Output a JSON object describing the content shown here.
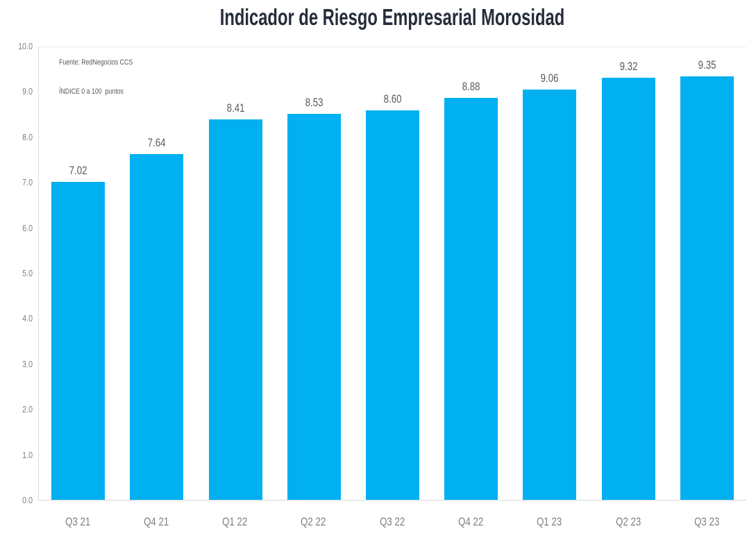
{
  "chart_data": {
    "type": "bar",
    "title": "Indicador de Riesgo Empresarial Morosidad",
    "categories": [
      "Q3 21",
      "Q4 21",
      "Q1 22",
      "Q2 22",
      "Q3 22",
      "Q4 22",
      "Q1 23",
      "Q2 23",
      "Q3 23"
    ],
    "values": [
      7.02,
      7.64,
      8.41,
      8.53,
      8.6,
      8.88,
      9.06,
      9.32,
      9.35
    ],
    "value_labels": [
      "7.02",
      "7.64",
      "8.41",
      "8.53",
      "8.60",
      "8.88",
      "9.06",
      "9.32",
      "9.35"
    ],
    "xlabel": "",
    "ylabel": "",
    "ylim": [
      0,
      10
    ],
    "ytick_step": 1.0,
    "ytick_labels": [
      "0.0",
      "1.0",
      "2.0",
      "3.0",
      "4.0",
      "5.0",
      "6.0",
      "7.0",
      "8.0",
      "9.0",
      "10.0"
    ],
    "grid": "top-boundary-line-only",
    "legend": null,
    "annotations": {
      "source": "Fuente: RedNegocios CCS",
      "index_note": "ÍNDICE 0 a 100  puntos"
    },
    "colors": {
      "bar": "#00b0f0",
      "title": "#262d3a",
      "data_label": "#595959",
      "axis_label": "#7f7f7f",
      "source_text": "#595959",
      "axis_line": "#d9d9d9",
      "top_gridline": "#ececec",
      "background": "#ffffff"
    }
  }
}
